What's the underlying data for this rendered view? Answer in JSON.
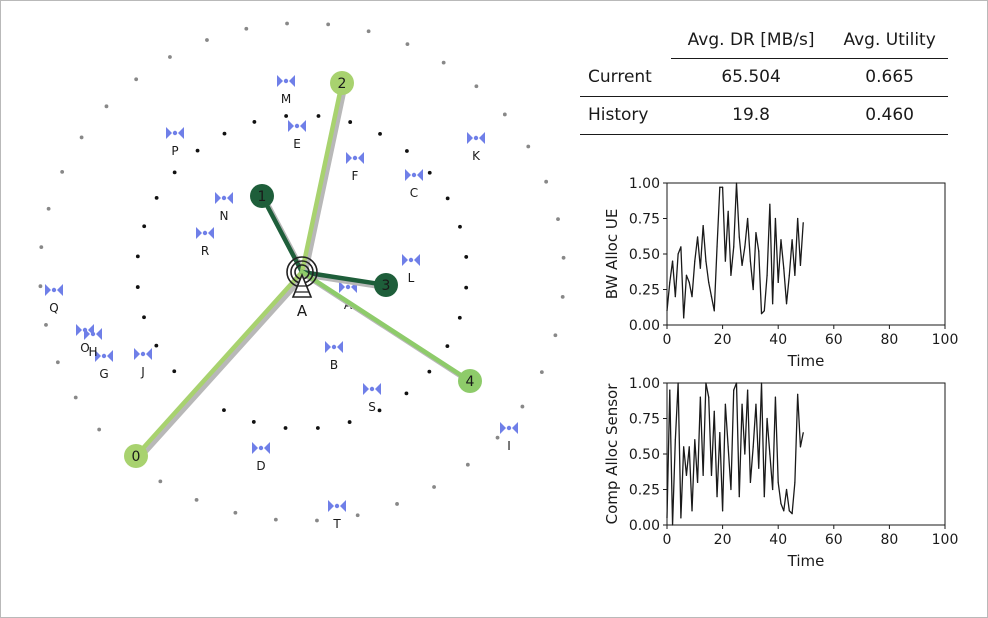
{
  "network": {
    "base_station_label": "A",
    "access_points": [
      {
        "label": "A"
      },
      {
        "label": "B"
      },
      {
        "label": "C"
      },
      {
        "label": "D"
      },
      {
        "label": "E"
      },
      {
        "label": "F"
      },
      {
        "label": "G"
      },
      {
        "label": "H"
      },
      {
        "label": "I"
      },
      {
        "label": "J"
      },
      {
        "label": "K"
      },
      {
        "label": "L"
      },
      {
        "label": "M"
      },
      {
        "label": "N"
      },
      {
        "label": "O"
      },
      {
        "label": "P"
      },
      {
        "label": "Q"
      },
      {
        "label": "R"
      },
      {
        "label": "S"
      },
      {
        "label": "T"
      }
    ],
    "user_nodes": [
      {
        "label": "0",
        "color": "#a8d26f"
      },
      {
        "label": "1",
        "color": "#1e5e3a"
      },
      {
        "label": "2",
        "color": "#a8d26f"
      },
      {
        "label": "3",
        "color": "#1e5e3a"
      },
      {
        "label": "4",
        "color": "#8ecb6a"
      }
    ],
    "colors": {
      "ap": "#6f7fe8",
      "inner_ring": "#111111",
      "outer_ring": "#888888",
      "shadow": "#b8b8b8"
    }
  },
  "table": {
    "headers": [
      "",
      "Avg. DR [MB/s]",
      "Avg. Utility"
    ],
    "rows": [
      {
        "label": "Current",
        "dr": "65.504",
        "utility": "0.665"
      },
      {
        "label": "History",
        "dr": "19.8",
        "utility": "0.460"
      }
    ]
  },
  "chart_data": [
    {
      "type": "line",
      "title": "",
      "xlabel": "Time",
      "ylabel": "BW Alloc UE",
      "xlim": [
        0,
        100
      ],
      "ylim": [
        0,
        1
      ],
      "xticks": [
        "0",
        "20",
        "40",
        "60",
        "80",
        "100"
      ],
      "yticks": [
        "0.00",
        "0.25",
        "0.50",
        "0.75",
        "1.00"
      ],
      "grid": false,
      "series": [
        {
          "values": [
            0.1,
            0.3,
            0.45,
            0.2,
            0.5,
            0.55,
            0.05,
            0.35,
            0.3,
            0.2,
            0.45,
            0.62,
            0.4,
            0.7,
            0.45,
            0.3,
            0.2,
            0.1,
            0.55,
            0.97,
            0.97,
            0.45,
            0.8,
            0.35,
            0.55,
            1.0,
            0.62,
            0.42,
            0.55,
            0.75,
            0.45,
            0.25,
            0.65,
            0.52,
            0.08,
            0.1,
            0.35,
            0.85,
            0.15,
            0.75,
            0.3,
            0.6,
            0.4,
            0.15,
            0.35,
            0.6,
            0.35,
            0.75,
            0.42,
            0.72
          ]
        }
      ]
    },
    {
      "type": "line",
      "title": "",
      "xlabel": "Time",
      "ylabel": "Comp Alloc Sensor",
      "xlim": [
        0,
        100
      ],
      "ylim": [
        0,
        1
      ],
      "xticks": [
        "0",
        "20",
        "40",
        "60",
        "80",
        "100"
      ],
      "yticks": [
        "0.00",
        "0.25",
        "0.50",
        "0.75",
        "1.00"
      ],
      "grid": false,
      "series": [
        {
          "values": [
            0.05,
            0.95,
            0.0,
            0.6,
            1.0,
            0.05,
            0.55,
            0.35,
            0.55,
            0.1,
            0.6,
            0.3,
            0.9,
            0.35,
            1.0,
            0.9,
            0.35,
            0.8,
            0.2,
            0.65,
            0.1,
            0.85,
            0.55,
            0.25,
            0.95,
            1.0,
            0.2,
            0.85,
            0.5,
            0.95,
            0.3,
            0.55,
            0.85,
            0.4,
            1.0,
            0.2,
            0.75,
            0.5,
            0.25,
            0.9,
            0.3,
            0.15,
            0.1,
            0.25,
            0.1,
            0.08,
            0.3,
            0.92,
            0.55,
            0.65
          ]
        }
      ]
    }
  ]
}
